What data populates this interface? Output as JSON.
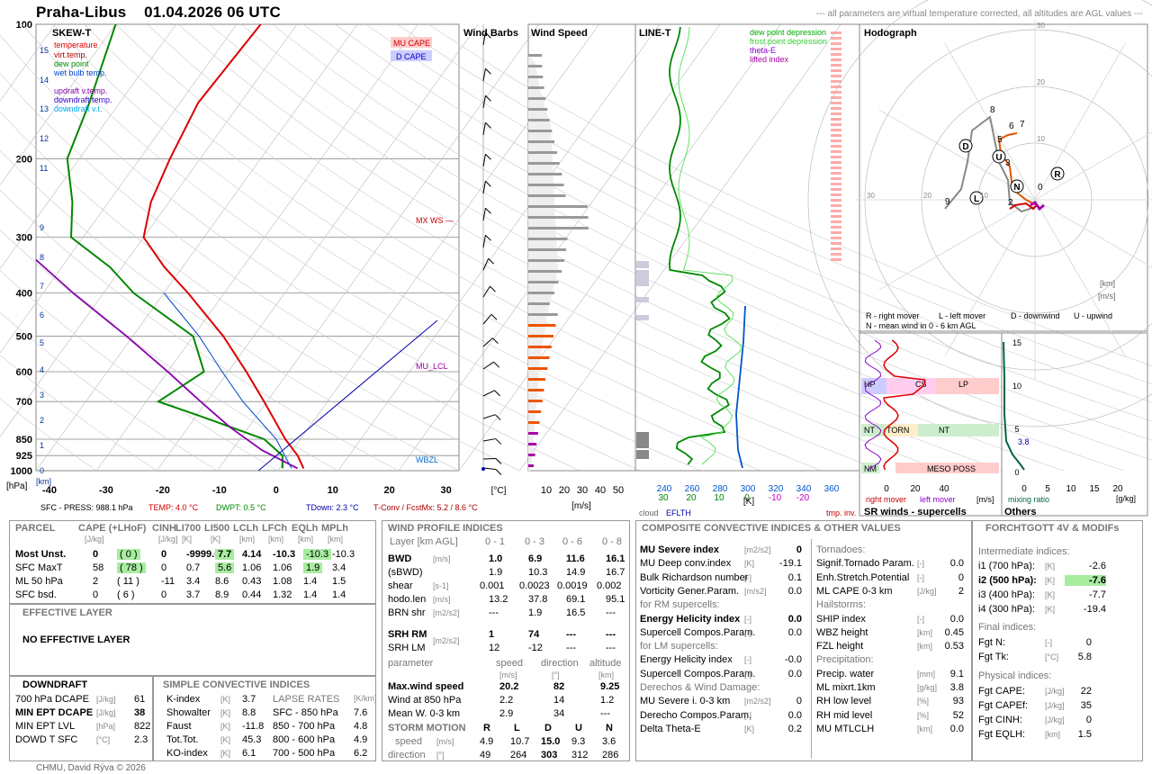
{
  "header": {
    "station": "Praha-Libus",
    "datetime": "01.04.2026 06 UTC",
    "note": "--- all parameters are virtual temperature corrected, all altitudes are AGL values ---"
  },
  "colors": {
    "temperature": "#dd0000",
    "dewpoint": "#008800",
    "parcel": "#8800aa",
    "wetbulb": "#0044cc",
    "axis": "#333333",
    "grid": "#cccccc",
    "barb": "#000000",
    "speed_hist": "#999999",
    "speed_low": "#ee5500",
    "speed_vlow": "#aa00aa"
  },
  "panels": {
    "skewt": {
      "title": "SKEW-T",
      "legend": [
        "temperature",
        "virt.temp.",
        "dew point",
        "wet bulb temp.",
        "updraft v.temp.",
        "downdraft temp.",
        "downdraft v.t."
      ],
      "pressure_ticks": [
        "100",
        "200",
        "300",
        "400",
        "500",
        "600",
        "700",
        "850",
        "925",
        "1000"
      ],
      "height_ticks": [
        "15",
        "14",
        "13",
        "12",
        "11",
        "9",
        "8",
        "7",
        "6",
        "5",
        "4",
        "3",
        "2",
        "1",
        "0"
      ],
      "temp_ticks": [
        "-40",
        "-30",
        "-20",
        "-10",
        "0",
        "10",
        "20",
        "30"
      ],
      "temp_unit": "[°C]",
      "hpa_label": "[hPa]",
      "km_label": "[km]",
      "labels": {
        "mu_cape": "MU CAPE",
        "d_cape": "D CAPE",
        "mxws": "MX WS",
        "mu_lcl": "MU_LCL",
        "wbzl": "WBZL"
      },
      "footer": {
        "sfc": "SFC - PRESS: 988.1 hPa",
        "temp": "TEMP: 4.0 °C",
        "dwpt": "DWPT: 0.5 °C",
        "tdown": "TDown: 2.3 °C",
        "tconv": "T-Conv / FcstMx: 5.2 / 8.6 °C"
      }
    },
    "barbs": {
      "title": "Wind Barbs"
    },
    "wind_speed": {
      "title": "Wind Speed",
      "ticks": [
        "10",
        "20",
        "30",
        "40",
        "50"
      ],
      "unit": "[m/s]"
    },
    "line_t": {
      "title": "LINE-T",
      "legend": [
        "dew point depression",
        "frost point depression",
        "theta-E",
        "lifted index"
      ],
      "ticks_top": [
        "240",
        "260",
        "280",
        "300",
        "320",
        "340",
        "360"
      ],
      "ticks_bot": [
        "30",
        "20",
        "10",
        "0",
        "-10",
        "-20"
      ],
      "unit": "[K]",
      "cloud": "cloud",
      "eflth": "EFLTH",
      "tmpinv": "tmp. inv."
    },
    "hodograph": {
      "title": "Hodograph",
      "rings": [
        "10",
        "20",
        "30"
      ],
      "km": "[km]",
      "ms": "[m/s]",
      "markers": [
        "D",
        "U",
        "L",
        "N",
        "R"
      ],
      "points": [
        "8",
        "6",
        "7",
        "5",
        "3",
        "9",
        "2",
        "0"
      ],
      "legend1": "R - right mover",
      "legend2": "L - left mover",
      "legend3": "D - downwind",
      "legend4": "U - upwind",
      "legend5": "N - mean wind in 0 - 6 km AGL"
    },
    "srwinds": {
      "title": "SR winds - supercells",
      "ticks": [
        "0",
        "20",
        "40"
      ],
      "unit": "[m/s]",
      "yticks": [
        "15",
        "10",
        "5",
        "0"
      ],
      "labels": [
        "HP",
        "CS",
        "LP",
        "NT",
        "TORN",
        "NT",
        "NM",
        "MESO POSS"
      ],
      "right_mover": "right mover",
      "left_mover": "left mover"
    },
    "others": {
      "title": "Others",
      "ticks": [
        "0",
        "5",
        "10",
        "15",
        "20"
      ],
      "unit": "[g/kg]",
      "val": "3.8",
      "mixing": "mixing ratio"
    }
  },
  "chart_data": [
    {
      "type": "line",
      "title": "SKEW-T",
      "xlabel": "[°C]",
      "ylabel": "[hPa]",
      "xlim": [
        -40,
        30
      ],
      "ylim": [
        1000,
        100
      ],
      "series": [
        {
          "name": "temperature",
          "p": [
            988,
            925,
            850,
            700,
            600,
            500,
            400,
            350,
            300,
            250,
            200,
            150,
            100
          ],
          "t": [
            4.0,
            1.5,
            -2.5,
            -10.5,
            -17,
            -25,
            -36,
            -43,
            -50,
            -53,
            -55,
            -57,
            -56
          ]
        },
        {
          "name": "dew point",
          "p": [
            988,
            925,
            850,
            750,
            700,
            600,
            500,
            400,
            350,
            300,
            250,
            200,
            150,
            100
          ],
          "t": [
            0.5,
            -1,
            -6,
            -20,
            -28,
            -24,
            -30,
            -45,
            -52,
            -62,
            -66,
            -72,
            -75,
            -80
          ]
        }
      ]
    },
    {
      "type": "bar",
      "title": "Wind Speed",
      "xlabel": "[m/s]",
      "xlim": [
        0,
        55
      ],
      "categories": [
        "0.5",
        "1",
        "1.5",
        "2",
        "3",
        "4",
        "5",
        "6",
        "7",
        "8",
        "9",
        "10",
        "11",
        "12"
      ],
      "values": [
        2,
        5,
        7,
        8,
        9,
        11,
        12,
        15,
        19,
        22,
        28,
        25,
        22,
        14
      ]
    }
  ],
  "tables": {
    "parcel": {
      "title": "PARCEL",
      "headers": [
        "CAPE (+LHoF)",
        "CINH",
        "LI700",
        "LI500",
        "LCLh",
        "LFCh",
        "EQLh",
        "MPLh"
      ],
      "units": [
        "[J/kg]",
        "[J/kg]",
        "[K]",
        "[K]",
        "[km]",
        "[km]",
        "[km]",
        "[km]"
      ],
      "rows": [
        {
          "name": "Most Unst.",
          "v": [
            "0",
            "( 0 )",
            "0",
            "-9999.0",
            "7.7",
            "4.14",
            "-10.3",
            "-10.3",
            "-10.3"
          ]
        },
        {
          "name": "SFC MaxT",
          "v": [
            "58",
            "( 78 )",
            "0",
            "0.7",
            "5.6",
            "1.06",
            "1.06",
            "1.9",
            "3.4"
          ]
        },
        {
          "name": "ML 50 hPa",
          "v": [
            "2",
            "( 11 )",
            "-11",
            "3.4",
            "8.6",
            "0.43",
            "1.08",
            "1.4",
            "1.5"
          ]
        },
        {
          "name": "SFC bsd.",
          "v": [
            "0",
            "( 6 )",
            "0",
            "3.7",
            "8.9",
            "0.44",
            "1.32",
            "1.4",
            "1.4"
          ]
        }
      ]
    },
    "effective": {
      "title": "EFFECTIVE LAYER",
      "text": "NO EFFECTIVE LAYER"
    },
    "downdraft": {
      "title": "DOWNDRAFT",
      "rows": [
        {
          "name": "700 hPa DCAPE",
          "unit": "[J/kg]",
          "v": "61",
          "bold": false
        },
        {
          "name": "MIN EPT DCAPE",
          "unit": "[J/kg]",
          "v": "38",
          "bold": true
        },
        {
          "name": "MIN EPT LVL",
          "unit": "[hPa]",
          "v": "822",
          "bold": false
        },
        {
          "name": "DOWD T SFC",
          "unit": "[°C]",
          "v": "2.3",
          "bold": false
        }
      ]
    },
    "simple": {
      "title": "SIMPLE CONVECTIVE INDICES",
      "rows": [
        {
          "name": "K-index",
          "unit": "[K]",
          "v": "3.7"
        },
        {
          "name": "Showalter",
          "unit": "[K]",
          "v": "8.8"
        },
        {
          "name": "Faust",
          "unit": "[K]",
          "v": "-11.8"
        },
        {
          "name": "Tot.Tot.",
          "unit": "[K]",
          "v": "45.3"
        },
        {
          "name": "KO-index",
          "unit": "[K]",
          "v": "6.1"
        }
      ],
      "lapse_title": "LAPSE RATES",
      "lapse_unit": "[K/km]",
      "lapse": [
        {
          "name": "SFC - 850 hPa",
          "v": "7.6"
        },
        {
          "name": "850 - 700 hPa",
          "v": "4.8"
        },
        {
          "name": "800 - 600 hPa",
          "v": "4.9"
        },
        {
          "name": "700 - 500 hPa",
          "v": "6.2"
        }
      ]
    },
    "wind": {
      "title": "WIND PROFILE INDICES",
      "layer": "Layer [km AGL]",
      "cols": [
        "0 - 1",
        "0 - 3",
        "0 - 6",
        "0 - 8"
      ],
      "rows": [
        {
          "name": "BWD",
          "unit": "[m/s]",
          "v": [
            "1.0",
            "6.9",
            "11.6",
            "16.1"
          ],
          "bold": true
        },
        {
          "name": "(sBWD)",
          "unit": "",
          "v": [
            "1.9",
            "10.3",
            "14.9",
            "16.7"
          ],
          "bold": false
        },
        {
          "name": "shear",
          "unit": "[s-1]",
          "v": [
            "0.001",
            "0.0023",
            "0.0019",
            "0.002"
          ],
          "bold": false
        },
        {
          "name": "hodo.len",
          "unit": "[m/s]",
          "v": [
            "13.2",
            "37.8",
            "69.1",
            "95.1"
          ],
          "bold": false
        },
        {
          "name": "BRN shr",
          "unit": "[m2/s2]",
          "v": [
            "---",
            "1.9",
            "16.5",
            "---"
          ],
          "bold": false
        }
      ],
      "srh": [
        {
          "name": "SRH RM",
          "unit": "[m2/s2]",
          "v": [
            "1",
            "74",
            "---",
            "---"
          ],
          "bold": true
        },
        {
          "name": "SRH LM",
          "unit": "",
          "v": [
            "12",
            "-12",
            "---",
            "---"
          ],
          "bold": false
        }
      ],
      "param_head": [
        "parameter",
        "speed",
        "direction",
        "altitude"
      ],
      "param_units": [
        "[m/s]",
        "[°]",
        "[km]"
      ],
      "params": [
        {
          "name": "Max.wind speed",
          "v": [
            "20.2",
            "82",
            "9.25"
          ],
          "bold": true
        },
        {
          "name": "Wind at 850 hPa",
          "v": [
            "2.2",
            "14",
            "1.2"
          ],
          "bold": false
        },
        {
          "name": "Mean W. 0-3 km",
          "v": [
            "2.9",
            "34",
            "---"
          ],
          "bold": false
        }
      ],
      "storm_title": "STORM MOTION",
      "storm_cols": [
        "R",
        "L",
        "D",
        "U",
        "N"
      ],
      "storm_speed": {
        "name": "speed",
        "unit": "[m/s]",
        "v": [
          "4.9",
          "10.7",
          "15.0",
          "9.3",
          "3.6"
        ]
      },
      "storm_dir": {
        "name": "direction",
        "unit": "[°]",
        "v": [
          "49",
          "264",
          "303",
          "312",
          "286"
        ]
      }
    },
    "composite": {
      "title": "COMPOSITE CONVECTIVE INDICES & OTHER VALUES",
      "left": [
        {
          "name": "MU Severe index",
          "unit": "[m2/s2]",
          "v": "0",
          "bold": true
        },
        {
          "name": "MU Deep conv.index",
          "unit": "[K]",
          "v": "-19.1"
        },
        {
          "name": "Bulk Richardson number",
          "unit": "[-]",
          "v": "0.1"
        },
        {
          "name": "Vorticity Gener.Param.",
          "unit": "[m/s2]",
          "v": "0.0"
        },
        {
          "head": "for RM supercells:"
        },
        {
          "name": "Energy Helicity index",
          "unit": "[-]",
          "v": "0.0",
          "bold": true
        },
        {
          "name": "Supercell Compos.Param.",
          "unit": "[-]",
          "v": "0.0"
        },
        {
          "head": "for LM supercells:"
        },
        {
          "name": "Energy Helicity index",
          "unit": "[-]",
          "v": "-0.0"
        },
        {
          "name": "Supercell Compos.Param.",
          "unit": "[-]",
          "v": "0.0"
        },
        {
          "head": "Derechos & Wind Damage:"
        },
        {
          "name": "MU Severe i. 0-3 km",
          "unit": "[m2/s2]",
          "v": "0"
        },
        {
          "name": "Derecho Compos.Param.",
          "unit": "[-]",
          "v": "0.0"
        },
        {
          "name": "Delta Theta-E",
          "unit": "[K]",
          "v": "0.2"
        }
      ],
      "right": [
        {
          "head": "Tornadoes:"
        },
        {
          "name": "Signif.Tornado Param.",
          "unit": "[-]",
          "v": "0.0"
        },
        {
          "name": "Enh.Stretch.Potential",
          "unit": "[-]",
          "v": "0"
        },
        {
          "name": "ML CAPE 0-3 km",
          "unit": "[J/kg]",
          "v": "2"
        },
        {
          "head": "Hailstorms:"
        },
        {
          "name": "SHIP index",
          "unit": "[-]",
          "v": "0.0"
        },
        {
          "name": "WBZ height",
          "unit": "[km]",
          "v": "0.45"
        },
        {
          "name": "FZL height",
          "unit": "[km]",
          "v": "0.53"
        },
        {
          "head": "Precipitation:"
        },
        {
          "name": "Precip. water",
          "unit": "[mm]",
          "v": "9.1"
        },
        {
          "name": "ML mixrt.1km",
          "unit": "[g/kg]",
          "v": "3.8"
        },
        {
          "name": "RH low level",
          "unit": "[%]",
          "v": "93"
        },
        {
          "name": "RH mid level",
          "unit": "[%]",
          "v": "52"
        },
        {
          "name": "MU MTLCLH",
          "unit": "[km]",
          "v": "0.0"
        }
      ]
    },
    "forchtgott": {
      "title": "FORCHTGOTT 4V & MODIFs",
      "h1": "Intermediate indices:",
      "inter": [
        {
          "name": "i1 (700 hPa):",
          "unit": "[K]",
          "v": "-2.6",
          "bold": false
        },
        {
          "name": "i2 (500 hPa):",
          "unit": "[K]",
          "v": "-7.6",
          "bold": true
        },
        {
          "name": "i3 (400 hPa):",
          "unit": "[K]",
          "v": "-7.7",
          "bold": false
        },
        {
          "name": "i4 (300 hPa):",
          "unit": "[K]",
          "v": "-19.4",
          "bold": false
        }
      ],
      "h2": "Final indices:",
      "final": [
        {
          "name": "Fgt N:",
          "unit": "[-]",
          "v": "0"
        },
        {
          "name": "Fgt Tk:",
          "unit": "[°C]",
          "v": "5.8"
        }
      ],
      "h3": "Physical indices:",
      "phys": [
        {
          "name": "Fgt CAPE:",
          "unit": "[J/kg]",
          "v": "22"
        },
        {
          "name": "Fgt CAPEf:",
          "unit": "[J/kg]",
          "v": "35"
        },
        {
          "name": "Fgt CINH:",
          "unit": "[J/kg]",
          "v": "0"
        },
        {
          "name": "Fgt EQLH:",
          "unit": "[km]",
          "v": "1.5"
        }
      ]
    }
  },
  "footer": "CHMU, David Rýva © 2026"
}
